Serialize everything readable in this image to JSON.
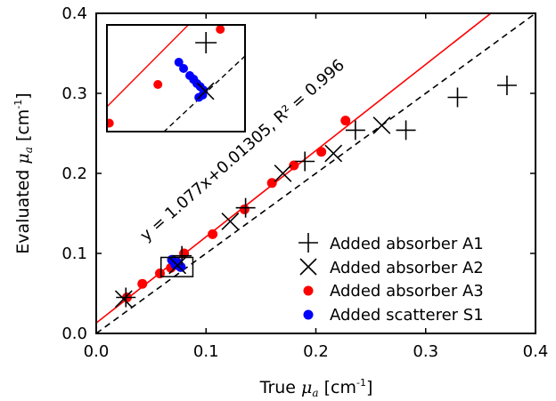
{
  "chart_data": {
    "type": "scatter",
    "xlabel": "True μa [cm⁻¹]",
    "ylabel": "Evaluated μa [cm⁻¹]",
    "xlim": [
      0,
      0.4
    ],
    "ylim": [
      0,
      0.4
    ],
    "x_ticks": [
      "0.0",
      "0.1",
      "0.2",
      "0.3",
      "0.4"
    ],
    "y_ticks": [
      "0.0",
      "0.1",
      "0.2",
      "0.3",
      "0.4"
    ],
    "legend_position": "bottom-right",
    "series": [
      {
        "name": "Added absorber A1",
        "marker": "plus",
        "color": "#000000",
        "points": [
          [
            0.027,
            0.045
          ],
          [
            0.078,
            0.097
          ],
          [
            0.136,
            0.157
          ],
          [
            0.19,
            0.215
          ],
          [
            0.236,
            0.254
          ],
          [
            0.282,
            0.254
          ],
          [
            0.329,
            0.295
          ],
          [
            0.374,
            0.31
          ]
        ]
      },
      {
        "name": "Added absorber A2",
        "marker": "cross",
        "color": "#000000",
        "points": [
          [
            0.025,
            0.043
          ],
          [
            0.074,
            0.085
          ],
          [
            0.122,
            0.14
          ],
          [
            0.17,
            0.2
          ],
          [
            0.216,
            0.225
          ],
          [
            0.26,
            0.26
          ]
        ]
      },
      {
        "name": "Added absorber A3",
        "marker": "dot",
        "color": "#ff0000",
        "points": [
          [
            0.028,
            0.045
          ],
          [
            0.042,
            0.062
          ],
          [
            0.058,
            0.075
          ],
          [
            0.068,
            0.082
          ],
          [
            0.08,
            0.1
          ],
          [
            0.106,
            0.124
          ],
          [
            0.135,
            0.155
          ],
          [
            0.16,
            0.188
          ],
          [
            0.18,
            0.21
          ],
          [
            0.205,
            0.227
          ],
          [
            0.227,
            0.266
          ]
        ]
      },
      {
        "name": "Added scatterer S1",
        "marker": "dot",
        "color": "#0000ff",
        "points": [
          [
            0.069,
            0.092
          ],
          [
            0.072,
            0.086
          ],
          [
            0.074,
            0.088
          ],
          [
            0.076,
            0.084
          ],
          [
            0.077,
            0.083
          ]
        ]
      }
    ],
    "fit_line": {
      "label": "y = 1.077x+0.01305, R² = 0.996",
      "slope": 1.077,
      "intercept": 0.01305,
      "color": "#ff0000"
    },
    "reference_line": {
      "style": "dashed",
      "color": "#000000",
      "slope": 1,
      "intercept": 0
    },
    "zoom_box": {
      "xlim": [
        0.059,
        0.088
      ],
      "ylim": [
        0.071,
        0.095
      ]
    },
    "inset": {
      "xlim": [
        0.059,
        0.088
      ],
      "ylim": [
        0.071,
        0.095
      ],
      "a1_points": [
        [
          0.0798,
          0.091
        ]
      ],
      "a2_points": [
        [
          0.0797,
          0.0801
        ]
      ],
      "a3_points": [
        [
          0.0595,
          0.0729
        ],
        [
          0.0697,
          0.0816
        ],
        [
          0.0828,
          0.094
        ]
      ],
      "s1_points": [
        [
          0.0741,
          0.0866
        ],
        [
          0.0751,
          0.0852
        ],
        [
          0.0764,
          0.0836
        ],
        [
          0.0772,
          0.0828
        ],
        [
          0.0779,
          0.0818
        ],
        [
          0.0786,
          0.0811
        ],
        [
          0.0793,
          0.0803
        ],
        [
          0.0791,
          0.0792
        ],
        [
          0.0783,
          0.0787
        ],
        [
          0.0772,
          0.0827
        ]
      ]
    }
  }
}
